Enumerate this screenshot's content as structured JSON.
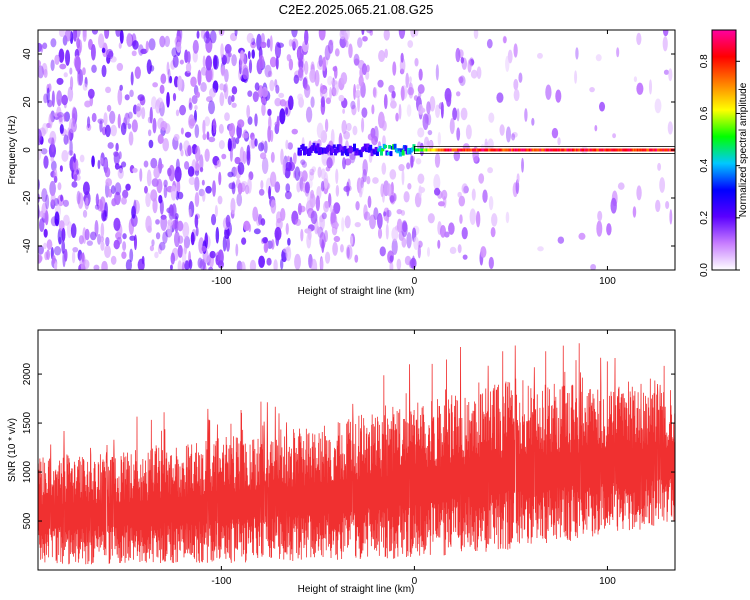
{
  "title": "C2E2.2025.065.21.08.G25",
  "chart_data": [
    {
      "type": "heatmap",
      "title": "",
      "xlabel": "Height of straight line (km)",
      "ylabel": "Frequency (Hz)",
      "xlim": [
        -195,
        135
      ],
      "ylim": [
        -50,
        50
      ],
      "x_ticks": [
        -100,
        0,
        100
      ],
      "x_tick_labels": [
        "-100",
        "0",
        "100"
      ],
      "y_ticks": [
        -40,
        -20,
        0,
        20,
        40
      ],
      "y_tick_labels": [
        "-40",
        "-20",
        "0",
        "20",
        "40"
      ],
      "grid": false,
      "colorbar": {
        "label": "Normalized spectral amplitude",
        "range": [
          0,
          0.92
        ],
        "ticks": [
          0.0,
          0.2,
          0.4,
          0.6,
          0.8
        ],
        "tick_labels": [
          "0.0",
          "0.2",
          "0.4",
          "0.6",
          "0.8"
        ],
        "colormap": [
          "#ffffff",
          "#c77dff",
          "#5a00ff",
          "#0000ff",
          "#00c8ff",
          "#00ff00",
          "#ffff00",
          "#ff8000",
          "#ff0000",
          "#ff00a0"
        ]
      },
      "noise_region": {
        "x_range": [
          -195,
          135
        ],
        "density_falls_off_after_x": 0,
        "typical_amplitude": 0.12
      },
      "carrier_band": {
        "frequency": 0,
        "starts_at_x": -60,
        "peak_amplitude": 0.9,
        "box_x_range": [
          0,
          135
        ],
        "box_y_range": [
          -1.5,
          1.5
        ]
      }
    },
    {
      "type": "line",
      "title": "",
      "xlabel": "Height of straight line (km)",
      "ylabel": "SNR (10 * v/v)",
      "xlim": [
        -195,
        135
      ],
      "ylim": [
        0,
        2450
      ],
      "x_ticks": [
        -100,
        0,
        100
      ],
      "x_tick_labels": [
        "-100",
        "0",
        "100"
      ],
      "y_ticks": [
        500,
        1000,
        1500,
        2000
      ],
      "y_tick_labels": [
        "500",
        "1000",
        "1500",
        "2000"
      ],
      "grid": false,
      "series": [
        {
          "color": "#f03030",
          "envelope": {
            "x": [
              -195,
              -150,
              -100,
              -50,
              0,
              50,
              100,
              135
            ],
            "lower": [
              50,
              60,
              70,
              90,
              120,
              200,
              350,
              480
            ],
            "upper": [
              1150,
              1200,
              1350,
              1500,
              1700,
              1950,
              1900,
              1850
            ],
            "spikes_max": [
              1450,
              1550,
              1700,
              1950,
              2250,
              2450,
              2300,
              2100
            ]
          }
        }
      ]
    }
  ]
}
